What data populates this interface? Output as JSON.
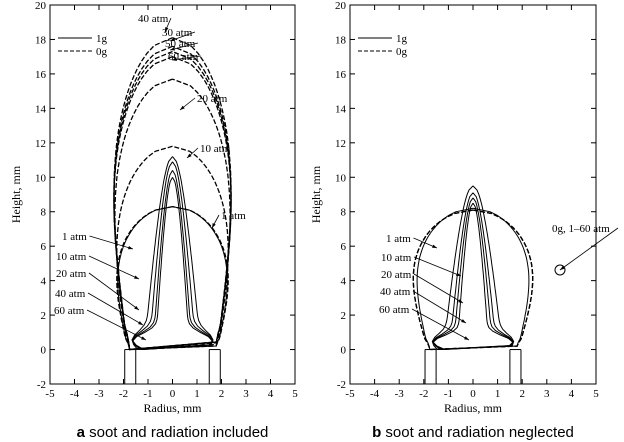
{
  "chart_data": [
    {
      "type": "line",
      "caption_letter": "a",
      "caption_text": "soot and radiation included",
      "xlabel": "Radius, mm",
      "ylabel": "Height, mm",
      "xlim": [
        -5,
        5
      ],
      "ylim": [
        -2,
        20
      ],
      "xticks": [
        "-5",
        "-4",
        "-3",
        "-2",
        "-1",
        "0",
        "1",
        "2",
        "3",
        "4",
        "5"
      ],
      "yticks": [
        "-2",
        "0",
        "2",
        "4",
        "6",
        "8",
        "10",
        "12",
        "14",
        "16",
        "18",
        "20"
      ],
      "legend": [
        {
          "label": "1g",
          "style": "solid"
        },
        {
          "label": "0g",
          "style": "dashed"
        }
      ],
      "series": [
        {
          "condition": "1g",
          "pressure_atm": 1,
          "peak_height": 8.3,
          "half_width": 2.5
        },
        {
          "condition": "1g",
          "pressure_atm": 10,
          "peak_height": 11.2,
          "half_width": 1.15
        },
        {
          "condition": "1g",
          "pressure_atm": 20,
          "peak_height": 10.9,
          "half_width": 0.95
        },
        {
          "condition": "1g",
          "pressure_atm": 40,
          "peak_height": 10.4,
          "half_width": 0.8
        },
        {
          "condition": "1g",
          "pressure_atm": 60,
          "peak_height": 10.0,
          "half_width": 0.7
        },
        {
          "condition": "0g",
          "pressure_atm": 1,
          "peak_height": 8.3,
          "half_width": 2.55
        },
        {
          "condition": "0g",
          "pressure_atm": 10,
          "peak_height": 11.8,
          "half_width": 2.55
        },
        {
          "condition": "0g",
          "pressure_atm": 20,
          "peak_height": 15.7,
          "half_width": 2.65
        },
        {
          "condition": "0g",
          "pressure_atm": 30,
          "peak_height": 17.6,
          "half_width": 2.7
        },
        {
          "condition": "0g",
          "pressure_atm": 40,
          "peak_height": 18.1,
          "half_width": 2.7
        },
        {
          "condition": "0g",
          "pressure_atm": 50,
          "peak_height": 17.3,
          "half_width": 2.7
        },
        {
          "condition": "0g",
          "pressure_atm": 60,
          "peak_height": 17.0,
          "half_width": 2.7
        }
      ],
      "annotations": [
        "40 atm",
        "30 atm",
        "50 atm",
        "60 atm",
        "20 atm",
        "10 atm",
        "1 atm",
        "1 atm",
        "10 atm",
        "20 atm",
        "40 atm",
        "60 atm"
      ]
    },
    {
      "type": "line",
      "caption_letter": "b",
      "caption_text": "soot and radiation neglected",
      "xlabel": "Radius, mm",
      "ylabel": "Height, mm",
      "xlim": [
        -5,
        5
      ],
      "ylim": [
        -2,
        20
      ],
      "xticks": [
        "-5",
        "-4",
        "-3",
        "-2",
        "-1",
        "0",
        "1",
        "2",
        "3",
        "4",
        "5"
      ],
      "yticks": [
        "-2",
        "0",
        "2",
        "4",
        "6",
        "8",
        "10",
        "12",
        "14",
        "16",
        "18",
        "20"
      ],
      "legend": [
        {
          "label": "1g",
          "style": "solid"
        },
        {
          "label": "0g",
          "style": "dashed"
        }
      ],
      "series": [
        {
          "condition": "1g",
          "pressure_atm": 1,
          "peak_height": 8.2,
          "half_width": 2.55
        },
        {
          "condition": "1g",
          "pressure_atm": 10,
          "peak_height": 9.5,
          "half_width": 1.2
        },
        {
          "condition": "1g",
          "pressure_atm": 20,
          "peak_height": 9.1,
          "half_width": 0.95
        },
        {
          "condition": "1g",
          "pressure_atm": 40,
          "peak_height": 8.8,
          "half_width": 0.8
        },
        {
          "condition": "1g",
          "pressure_atm": 60,
          "peak_height": 8.5,
          "half_width": 0.65
        },
        {
          "condition": "0g",
          "pressure_atm": 1,
          "peak_height": 8.1,
          "half_width": 2.75
        },
        {
          "condition": "0g",
          "pressure_atm": 60,
          "peak_height": 8.1,
          "half_width": 2.75
        }
      ],
      "annotations": [
        "1 atm",
        "10 atm",
        "20 atm",
        "40 atm",
        "60 atm",
        "0g, 1–60 atm"
      ]
    }
  ]
}
